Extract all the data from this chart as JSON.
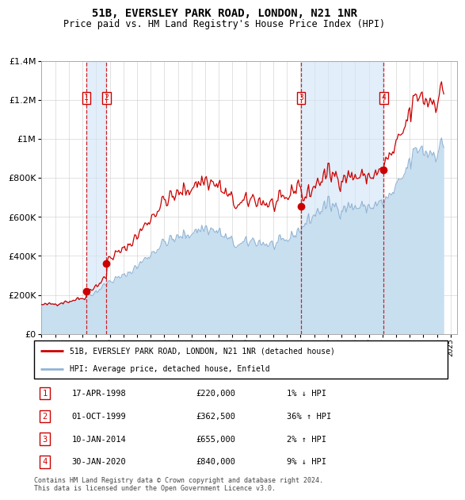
{
  "title": "51B, EVERSLEY PARK ROAD, LONDON, N21 1NR",
  "subtitle": "Price paid vs. HM Land Registry's House Price Index (HPI)",
  "ylim": [
    0,
    1400000
  ],
  "yticks": [
    0,
    200000,
    400000,
    600000,
    800000,
    1000000,
    1200000,
    1400000
  ],
  "ytick_labels": [
    "£0",
    "£200K",
    "£400K",
    "£600K",
    "£800K",
    "£1M",
    "£1.2M",
    "£1.4M"
  ],
  "hpi_color": "#92b4d4",
  "hpi_fill_color": "#c8dff0",
  "price_color": "#cc0000",
  "background_color": "#ffffff",
  "grid_color": "#cccccc",
  "transactions": [
    {
      "num": 1,
      "date_num": 1998.29,
      "price": 220000,
      "label": "1",
      "text": "17-APR-1998",
      "amount": "£220,000",
      "hpi_rel": "1% ↓ HPI"
    },
    {
      "num": 2,
      "date_num": 1999.75,
      "price": 362500,
      "label": "2",
      "text": "01-OCT-1999",
      "amount": "£362,500",
      "hpi_rel": "36% ↑ HPI"
    },
    {
      "num": 3,
      "date_num": 2014.03,
      "price": 655000,
      "label": "3",
      "text": "10-JAN-2014",
      "amount": "£655,000",
      "hpi_rel": "2% ↑ HPI"
    },
    {
      "num": 4,
      "date_num": 2020.08,
      "price": 840000,
      "label": "4",
      "text": "30-JAN-2020",
      "amount": "£840,000",
      "hpi_rel": "9% ↓ HPI"
    }
  ],
  "legend_line1": "51B, EVERSLEY PARK ROAD, LONDON, N21 1NR (detached house)",
  "legend_line2": "HPI: Average price, detached house, Enfield",
  "footer": "Contains HM Land Registry data © Crown copyright and database right 2024.\nThis data is licensed under the Open Government Licence v3.0.",
  "xlim_start": 1995.0,
  "xlim_end": 2025.5
}
